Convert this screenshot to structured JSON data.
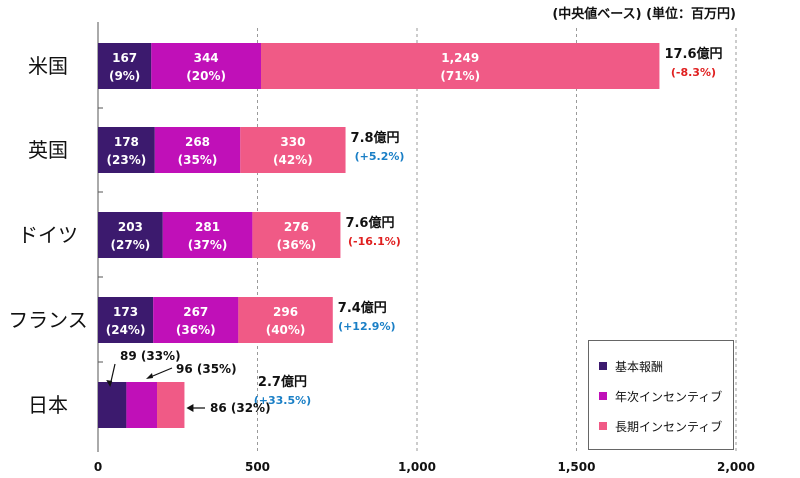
{
  "unit_note": "(中央値ベース) (単位：百万円)",
  "colors": {
    "base": "#3c1a6e",
    "annual": "#c010b8",
    "long": "#f05a86",
    "positive": "#1a7fc6",
    "negative": "#e02020"
  },
  "chart_data": {
    "type": "bar",
    "orientation": "horizontal",
    "stacked": true,
    "categories": [
      "米国",
      "英国",
      "ドイツ",
      "フランス",
      "日本"
    ],
    "series": [
      {
        "name": "基本報酬",
        "values": [
          167,
          178,
          203,
          173,
          89
        ],
        "labels": [
          "167",
          "178",
          "203",
          "173",
          "89"
        ],
        "pcts": [
          "(9%)",
          "(23%)",
          "(27%)",
          "(24%)",
          "(33%)"
        ]
      },
      {
        "name": "年次インセンティブ",
        "values": [
          344,
          268,
          281,
          267,
          96
        ],
        "labels": [
          "344",
          "268",
          "281",
          "267",
          "96"
        ],
        "pcts": [
          "(20%)",
          "(35%)",
          "(37%)",
          "(36%)",
          "(35%)"
        ]
      },
      {
        "name": "長期インセンティブ",
        "values": [
          1249,
          330,
          276,
          296,
          86
        ],
        "labels": [
          "1,249",
          "330",
          "276",
          "296",
          "86"
        ],
        "pcts": [
          "(71%)",
          "(42%)",
          "(36%)",
          "(40%)",
          "(32%)"
        ]
      }
    ],
    "totals": [
      "17.6億円",
      "7.8億円",
      "7.6億円",
      "7.4億円",
      "2.7億円"
    ],
    "changes": [
      "(-8.3%)",
      "(+5.2%)",
      "(-16.1%)",
      "(+12.9%)",
      "(+33.5%)"
    ],
    "change_signs": [
      "negative",
      "positive",
      "negative",
      "positive",
      "positive"
    ],
    "xlim": [
      0,
      2000
    ],
    "xticks": [
      0,
      500,
      1000,
      1500,
      2000
    ],
    "xtick_labels": [
      "0",
      "500",
      "1,000",
      "1,500",
      "2,000"
    ],
    "grid": "vertical-dashed",
    "legend_position": "bottom-right"
  }
}
